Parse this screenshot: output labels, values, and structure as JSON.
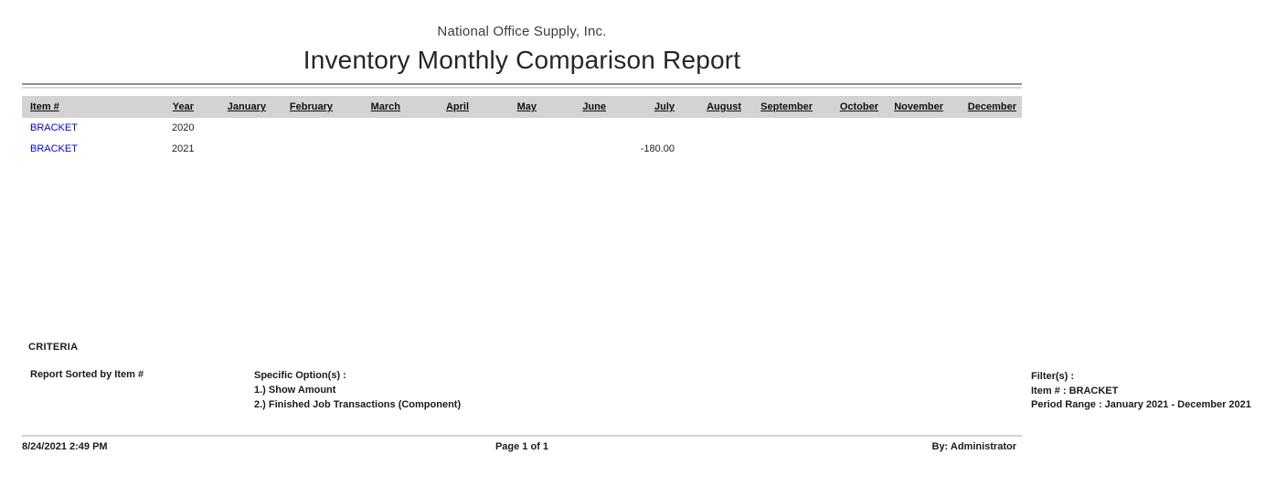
{
  "report": {
    "company": "National Office Supply, Inc.",
    "title": "Inventory Monthly Comparison Report"
  },
  "table": {
    "columns": [
      "Item #",
      "Year",
      "January",
      "February",
      "March",
      "April",
      "May",
      "June",
      "July",
      "August",
      "September",
      "October",
      "November",
      "December"
    ],
    "rows": [
      {
        "item": "BRACKET",
        "year": "2020",
        "months": [
          "",
          "",
          "",
          "",
          "",
          "",
          "",
          "",
          "",
          "",
          "",
          ""
        ]
      },
      {
        "item": "BRACKET",
        "year": "2021",
        "months": [
          "",
          "",
          "",
          "",
          "",
          "",
          "-180.00",
          "",
          "",
          "",
          "",
          ""
        ]
      }
    ]
  },
  "criteria": {
    "heading": "CRITERIA",
    "sort": "Report Sorted by Item #",
    "options_title": "Specific Option(s) :",
    "options": [
      "1.) Show Amount",
      "2.) Finished Job Transactions (Component)"
    ],
    "filters_title": "Filter(s) :",
    "filters": [
      "Item # : BRACKET",
      "Period Range : January 2021 - December 2021"
    ]
  },
  "footer": {
    "datetime": "8/24/2021 2:49 PM",
    "page": "Page 1 of 1",
    "by": "By: Administrator"
  },
  "colors": {
    "link_blue": "#0000ff",
    "header_band": "#d3d3d3"
  }
}
